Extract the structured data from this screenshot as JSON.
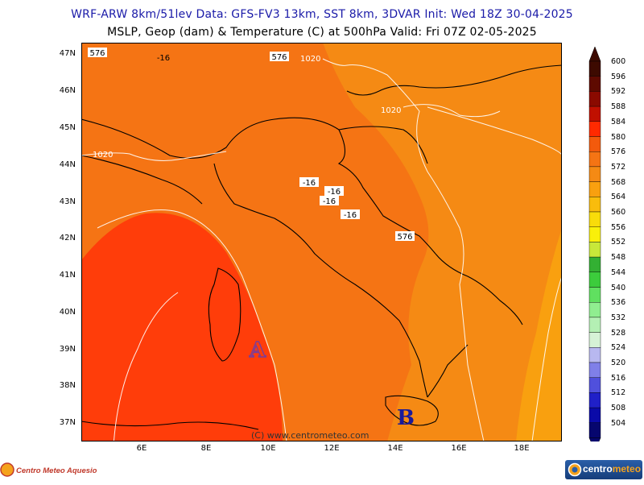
{
  "header": {
    "line1": "WRF-ARW 8km/51lev  Data: GFS-FV3 13km, SST 8km, 3DVAR  Init: Wed 18Z 30-04-2025",
    "line2": "MSLP, Geop (dam) & Temperature (C) at 500hPa  Valid: Fri 07Z 02-05-2025"
  },
  "map": {
    "lat_labels": [
      "47N",
      "46N",
      "45N",
      "44N",
      "43N",
      "42N",
      "41N",
      "40N",
      "39N",
      "38N",
      "37N"
    ],
    "lon_labels": [
      "6E",
      "8E",
      "10E",
      "12E",
      "14E",
      "16E",
      "18E"
    ],
    "geopotential_labels": [
      "576",
      "576",
      "576"
    ],
    "isobar_labels": [
      "1020",
      "1020",
      "1020"
    ],
    "temperature_labels": [
      "-16",
      "-16",
      "-16",
      "-16",
      "-16"
    ],
    "pressure_centers": [
      "A",
      "B"
    ],
    "credit": "(C) www.centrometeo.com"
  },
  "legend": {
    "values": [
      "600",
      "596",
      "592",
      "588",
      "584",
      "580",
      "576",
      "572",
      "568",
      "564",
      "560",
      "556",
      "552",
      "548",
      "544",
      "540",
      "536",
      "532",
      "528",
      "524",
      "520",
      "516",
      "512",
      "508",
      "504"
    ],
    "colors": [
      "#3d0a00",
      "#5e0a00",
      "#8a0a00",
      "#c01000",
      "#ff2a00",
      "#f35a0c",
      "#f57414",
      "#f58a14",
      "#f9a00f",
      "#f9bc0c",
      "#f9dc0a",
      "#f9f00a",
      "#c8e83a",
      "#33b033",
      "#3ccc3c",
      "#60e060",
      "#90ee90",
      "#b4f0b4",
      "#d6f2d6",
      "#b8b8f0",
      "#8080e8",
      "#5050dc",
      "#2020c8",
      "#0a0aa8",
      "#06066e"
    ]
  },
  "logos": {
    "left_text": "Centro Meteo Aquesio",
    "right_text_a": "centro",
    "right_text_b": "meteo"
  }
}
